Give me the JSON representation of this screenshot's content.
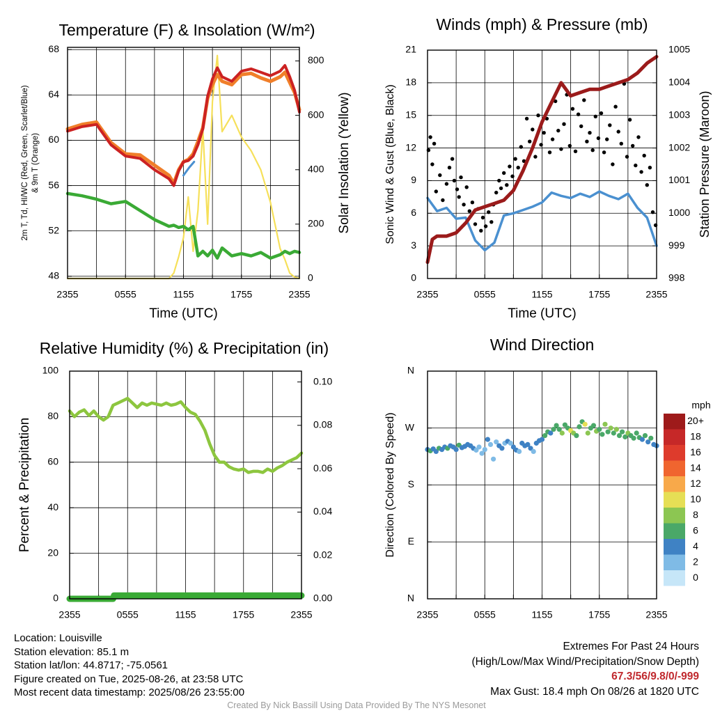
{
  "chart_data": [
    {
      "type": "line",
      "title": "Temperature (F) & Insolation (W/m²)",
      "xlabel": "Time (UTC)",
      "ylabel": "2m T, Td, HI/WC (Red, Green, Scarlet/Blue) & 9m T (Orange)",
      "ylabel_right": "Solar Insolation (Yellow)",
      "x_ticks": [
        "2355",
        "0555",
        "1155",
        "1755",
        "2355"
      ],
      "y_ticks": [
        48,
        52,
        56,
        60,
        64,
        68
      ],
      "y_right_ticks": [
        0,
        200,
        400,
        600,
        800
      ],
      "ylim": [
        47.8,
        68.2
      ],
      "y_right_lim": [
        0,
        850
      ],
      "x_hours": [
        0,
        1.5,
        3,
        4.5,
        6,
        7.5,
        9,
        10.5,
        11,
        11.5,
        12,
        12.5,
        13,
        13.5,
        14,
        14.5,
        15,
        15.5,
        16,
        17,
        18,
        19,
        20,
        21,
        22,
        22.5,
        23,
        23.5,
        24
      ],
      "series": [
        {
          "name": "2m T",
          "color": "#cc2222",
          "values": [
            60.8,
            61.2,
            61.4,
            59.6,
            58.6,
            58.4,
            57.4,
            56.6,
            56.0,
            57.3,
            58.1,
            58.2,
            58.6,
            59.6,
            61.0,
            63.9,
            65.4,
            66.4,
            65.6,
            65.2,
            66.1,
            66.3,
            66.0,
            65.7,
            66.1,
            66.6,
            65.6,
            64.4,
            62.5
          ]
        },
        {
          "name": "9m T",
          "color": "#f07f2a",
          "values": [
            61.0,
            61.4,
            61.6,
            59.8,
            58.8,
            58.7,
            57.8,
            56.9,
            56.2,
            57.4,
            58.1,
            58.3,
            58.8,
            59.9,
            61.1,
            63.7,
            64.9,
            65.8,
            65.2,
            64.9,
            65.8,
            65.9,
            65.5,
            65.2,
            65.6,
            66.0,
            65.1,
            64.2,
            62.7
          ]
        },
        {
          "name": "Td",
          "color": "#3aaa35",
          "values": [
            55.3,
            55.1,
            54.8,
            54.4,
            54.6,
            53.8,
            53.0,
            52.4,
            52.5,
            52.3,
            52.4,
            52.1,
            52.4,
            49.8,
            50.2,
            49.8,
            50.3,
            49.6,
            50.5,
            49.8,
            50.0,
            49.8,
            50.1,
            49.6,
            49.9,
            50.2,
            50.0,
            50.2,
            50.1
          ]
        },
        {
          "name": "Solar Insolation",
          "color": "#f6e05a",
          "axis": "right",
          "values": [
            0,
            0,
            0,
            0,
            0,
            0,
            0,
            0,
            20,
            80,
            150,
            300,
            100,
            250,
            550,
            200,
            650,
            820,
            540,
            600,
            520,
            470,
            400,
            280,
            110,
            70,
            20,
            5,
            0
          ]
        }
      ],
      "hi_wc_blue": {
        "color": "#4a90d0",
        "x_hours": [
          12.0,
          12.6,
          13.1
        ],
        "values": [
          56.9,
          57.6,
          58.1
        ]
      }
    },
    {
      "type": "line",
      "title": "Winds (mph) & Pressure (mb)",
      "xlabel": "Time (UTC)",
      "ylabel": "Sonic Wind & Gust (Blue, Black)",
      "ylabel_right": "Station Pressure (Maroon)",
      "x_ticks": [
        "2355",
        "0555",
        "1155",
        "1755",
        "2355"
      ],
      "y_ticks": [
        0,
        3,
        6,
        9,
        12,
        15,
        18,
        21
      ],
      "y_right_ticks": [
        998,
        999,
        1000,
        1001,
        1002,
        1003,
        1004,
        1005
      ],
      "ylim": [
        0,
        21
      ],
      "y_right_lim": [
        998,
        1005
      ],
      "series": [
        {
          "name": "Sonic Wind",
          "color": "#4a90d0",
          "x_hours": [
            0,
            1,
            2,
            3,
            4,
            5,
            6,
            7,
            8,
            9,
            10,
            11,
            12,
            13,
            14,
            15,
            16,
            17,
            18,
            19,
            20,
            21,
            22,
            23,
            24
          ],
          "values": [
            7.4,
            6.2,
            6.5,
            5.5,
            5.6,
            3.5,
            2.6,
            3.3,
            5.8,
            6.0,
            6.3,
            6.6,
            7.0,
            7.9,
            7.6,
            7.4,
            7.8,
            7.5,
            8.0,
            7.6,
            7.3,
            7.8,
            6.5,
            5.6,
            3.0
          ]
        },
        {
          "name": "Station Pressure",
          "color": "#9b1b1b",
          "x_hours": [
            0,
            0.5,
            1,
            2,
            3,
            4,
            5,
            6,
            7,
            8,
            9,
            10,
            11,
            12,
            13,
            14,
            15,
            16,
            17,
            18,
            19,
            20,
            21,
            22,
            23,
            23.5,
            24
          ],
          "values": [
            998.5,
            999.2,
            999.3,
            999.3,
            999.4,
            999.7,
            1000.1,
            1000.2,
            1000.3,
            1000.4,
            1000.7,
            1001.3,
            1002.0,
            1002.8,
            1003.4,
            1004.0,
            1003.6,
            1003.7,
            1003.8,
            1003.8,
            1003.9,
            1004.0,
            1004.1,
            1004.3,
            1004.6,
            1004.7,
            1004.8
          ]
        }
      ],
      "gust_points": {
        "name": "Gust",
        "color": "#000000",
        "x_hours": [
          0.1,
          0.3,
          0.5,
          0.7,
          0.9,
          1.3,
          1.6,
          2.0,
          2.3,
          2.6,
          2.8,
          3.1,
          3.3,
          3.5,
          3.8,
          4.1,
          4.4,
          4.7,
          5.0,
          5.3,
          5.6,
          5.8,
          6.1,
          6.4,
          6.7,
          6.9,
          7.2,
          7.5,
          7.7,
          8.0,
          8.3,
          8.6,
          8.9,
          9.2,
          9.5,
          9.8,
          10.1,
          10.4,
          10.7,
          11.0,
          11.3,
          11.6,
          11.9,
          12.2,
          12.5,
          12.8,
          13.1,
          13.4,
          13.7,
          14.0,
          14.3,
          14.6,
          14.9,
          15.2,
          15.5,
          15.8,
          16.1,
          16.4,
          16.7,
          17.0,
          17.3,
          17.6,
          17.9,
          18.2,
          18.5,
          18.8,
          19.1,
          19.4,
          19.7,
          20.0,
          20.3,
          20.6,
          20.9,
          21.2,
          21.5,
          21.8,
          22.1,
          22.4,
          22.7,
          23.0,
          23.3,
          23.6,
          23.9
        ],
        "values": [
          11.8,
          13.0,
          10.5,
          12.4,
          8.0,
          9.5,
          7.2,
          8.7,
          10.2,
          11.0,
          9.0,
          8.2,
          7.5,
          9.3,
          6.8,
          8.4,
          6.2,
          7.0,
          5.0,
          6.4,
          4.4,
          5.6,
          4.8,
          6.1,
          5.2,
          6.8,
          7.9,
          9.0,
          8.3,
          9.7,
          8.6,
          10.3,
          9.4,
          11.0,
          10.2,
          12.1,
          10.8,
          14.7,
          12.6,
          13.7,
          11.2,
          15.0,
          12.3,
          13.4,
          14.7,
          11.6,
          12.8,
          16.3,
          13.6,
          11.9,
          14.2,
          16.9,
          12.2,
          15.6,
          11.7,
          15.1,
          14.0,
          16.4,
          12.6,
          13.4,
          11.8,
          14.9,
          12.9,
          15.2,
          11.6,
          12.8,
          14.1,
          10.5,
          15.8,
          13.5,
          12.4,
          17.9,
          11.2,
          14.6,
          12.2,
          10.4,
          13.0,
          9.8,
          11.3,
          8.6,
          10.2,
          6.1,
          4.9
        ]
      }
    },
    {
      "type": "line",
      "title": "Relative Humidity (%) & Precipitation (in)",
      "ylabel": "Percent & Precipitation",
      "x_ticks": [
        "2355",
        "0555",
        "1155",
        "1755",
        "2355"
      ],
      "y_ticks": [
        0,
        20,
        40,
        60,
        80,
        100
      ],
      "y_right_ticks": [
        "0.00",
        "0.02",
        "0.04",
        "0.06",
        "0.08",
        "0.10"
      ],
      "ylim": [
        0,
        100
      ],
      "y_right_lim": [
        0,
        0.105
      ],
      "series": [
        {
          "name": "Relative Humidity",
          "color": "#8dc63f",
          "x_hours": [
            0,
            0.5,
            1,
            1.5,
            2,
            2.5,
            3,
            3.5,
            4,
            4.5,
            5,
            5.5,
            6,
            6.5,
            7,
            7.5,
            8,
            8.5,
            9,
            9.5,
            10,
            10.5,
            11,
            11.5,
            12,
            12.5,
            13,
            13.5,
            14,
            14.5,
            15,
            15.5,
            16,
            16.5,
            17,
            17.5,
            18,
            18.5,
            19,
            19.5,
            20,
            20.5,
            21,
            21.5,
            22,
            22.5,
            23,
            23.5,
            24
          ],
          "values": [
            82.5,
            80,
            82,
            83,
            80.5,
            82.5,
            80,
            78.5,
            80,
            85,
            86,
            87,
            88,
            86,
            84,
            86,
            85,
            86,
            85.5,
            85,
            86,
            85,
            85.5,
            86.5,
            84,
            82,
            81,
            78,
            74,
            68,
            63,
            60,
            60,
            58,
            57,
            56.5,
            57,
            55.5,
            56,
            56,
            55.5,
            57,
            56,
            57.5,
            58.5,
            60,
            61,
            62,
            64
          ]
        },
        {
          "name": "Precipitation",
          "color": "#3aaa35",
          "axis": "right",
          "x_hours": [
            0,
            4.5,
            4.6,
            24
          ],
          "values": [
            0,
            0,
            0.0015,
            0.0015
          ]
        }
      ]
    },
    {
      "type": "scatter",
      "title": "Wind Direction",
      "ylabel": "Direction (Colored By Speed)",
      "x_ticks": [
        "2355",
        "0555",
        "1155",
        "1755",
        "2355"
      ],
      "y_ticks": [
        "N",
        "E",
        "S",
        "W",
        "N"
      ],
      "ylim": [
        0,
        360
      ],
      "legend_title": "mph",
      "legend_labels": [
        "20+",
        "18",
        "16",
        "14",
        "12",
        "10",
        "8",
        "6",
        "4",
        "2",
        "0"
      ],
      "legend_colors": [
        "#9e1a1a",
        "#c62828",
        "#de3b2c",
        "#f0652f",
        "#f8a94a",
        "#e6df55",
        "#8cc652",
        "#4aa868",
        "#3f82c4",
        "#7fbbe6",
        "#c6e6f8"
      ],
      "x_hours": [
        0.0,
        0.3,
        0.6,
        0.9,
        1.2,
        1.5,
        1.8,
        2.1,
        2.4,
        2.7,
        3.0,
        3.3,
        3.6,
        3.9,
        4.2,
        4.5,
        4.8,
        5.1,
        5.4,
        5.7,
        6.0,
        6.3,
        6.6,
        6.9,
        7.2,
        7.5,
        7.8,
        8.1,
        8.4,
        8.7,
        9.0,
        9.3,
        9.6,
        9.9,
        10.2,
        10.5,
        10.8,
        11.1,
        11.4,
        11.7,
        12.0,
        12.3,
        12.6,
        12.9,
        13.2,
        13.5,
        13.8,
        14.1,
        14.4,
        14.7,
        15.0,
        15.3,
        15.6,
        15.9,
        16.2,
        16.5,
        16.8,
        17.1,
        17.4,
        17.7,
        18.0,
        18.3,
        18.6,
        18.9,
        19.2,
        19.5,
        19.8,
        20.1,
        20.4,
        20.7,
        21.0,
        21.3,
        21.6,
        21.9,
        22.2,
        22.5,
        22.8,
        23.1,
        23.4,
        23.7,
        24.0
      ],
      "direction_deg": [
        236,
        234,
        237,
        233,
        238,
        236,
        240,
        238,
        242,
        240,
        236,
        243,
        239,
        241,
        244,
        242,
        238,
        235,
        240,
        230,
        236,
        252,
        244,
        221,
        248,
        242,
        238,
        246,
        249,
        246,
        240,
        235,
        233,
        246,
        242,
        244,
        238,
        233,
        246,
        250,
        252,
        258,
        264,
        262,
        268,
        274,
        268,
        262,
        275,
        270,
        266,
        262,
        258,
        272,
        280,
        276,
        262,
        270,
        274,
        265,
        268,
        260,
        276,
        264,
        270,
        262,
        268,
        258,
        264,
        256,
        262,
        258,
        254,
        262,
        255,
        252,
        258,
        248,
        254,
        244,
        242
      ],
      "speed_mph": [
        4,
        6,
        5,
        4,
        6,
        4,
        5,
        6,
        4,
        5,
        4,
        6,
        5,
        4,
        4,
        5,
        4,
        2,
        3,
        2,
        2,
        4,
        2,
        2,
        3,
        4,
        4,
        3,
        4,
        3,
        4,
        4,
        3,
        4,
        4,
        5,
        4,
        3,
        4,
        5,
        4,
        6,
        6,
        4,
        6,
        7,
        6,
        8,
        6,
        7,
        10,
        8,
        7,
        6,
        7,
        10,
        8,
        6,
        7,
        8,
        7,
        6,
        8,
        7,
        8,
        6,
        8,
        7,
        6,
        7,
        8,
        6,
        7,
        6,
        6,
        5,
        6,
        4,
        6,
        5,
        4
      ]
    }
  ],
  "info": {
    "location": "Location: Louisville",
    "elevation": "Station elevation: 85.1 m",
    "latlon": "Station lat/lon: 44.8717; -75.0561",
    "created": "Figure created on Tue, 2025-08-26, at 23:58 UTC",
    "recent": "Most recent data timestamp: 2025/08/26 23:55:00"
  },
  "extremes": {
    "title": "Extremes For Past 24 Hours",
    "subtitle": "(High/Low/Max Wind/Precipitation/Snow Depth)",
    "values": "67.3/56/9.8/0/-999",
    "max_gust": "Max Gust: 18.4 mph On 08/26 at 1820 UTC"
  },
  "credit": "Created By Nick Bassill Using Data Provided By The NYS Mesonet"
}
